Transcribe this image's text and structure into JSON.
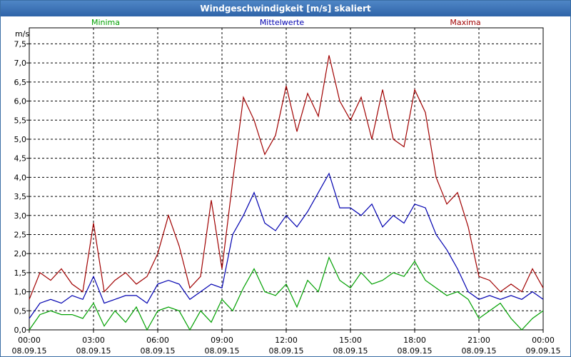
{
  "window": {
    "title": "Windgeschwindigkeit [m/s] skaliert"
  },
  "chart_data": {
    "type": "line",
    "title": "Windgeschwindigkeit [m/s] skaliert",
    "ylabel": "m/s",
    "xlabel": "",
    "ylim": [
      0,
      7.5
    ],
    "xlim_hours": [
      0,
      24
    ],
    "grid": true,
    "y_ticks": [
      "0,0",
      "0,5",
      "1,0",
      "1,5",
      "2,0",
      "2,5",
      "3,0",
      "3,5",
      "4,0",
      "4,5",
      "5,0",
      "5,5",
      "6,0",
      "6,5",
      "7,0",
      "7,5"
    ],
    "x_ticks": [
      {
        "time": "00:00",
        "date": "08.09.15"
      },
      {
        "time": "03:00",
        "date": "08.09.15"
      },
      {
        "time": "06:00",
        "date": "08.09.15"
      },
      {
        "time": "09:00",
        "date": "08.09.15"
      },
      {
        "time": "12:00",
        "date": "08.09.15"
      },
      {
        "time": "15:00",
        "date": "08.09.15"
      },
      {
        "time": "18:00",
        "date": "08.09.15"
      },
      {
        "time": "21:00",
        "date": "08.09.15"
      },
      {
        "time": "00:00",
        "date": "09.09.15"
      }
    ],
    "series": [
      {
        "name": "Minima",
        "color": "#00a000",
        "x": [
          0,
          0.5,
          1,
          1.5,
          2,
          2.5,
          3,
          3.5,
          4,
          4.5,
          5,
          5.5,
          6,
          6.5,
          7,
          7.5,
          8,
          8.5,
          9,
          9.5,
          10,
          10.5,
          11,
          11.5,
          12,
          12.5,
          13,
          13.5,
          14,
          14.5,
          15,
          15.5,
          16,
          16.5,
          17,
          17.5,
          18,
          18.5,
          19,
          19.5,
          20,
          20.5,
          21,
          21.5,
          22,
          22.5,
          23,
          23.5,
          24
        ],
        "values": [
          0.0,
          0.4,
          0.5,
          0.4,
          0.4,
          0.3,
          0.7,
          0.1,
          0.5,
          0.2,
          0.6,
          0.0,
          0.5,
          0.6,
          0.5,
          0.0,
          0.5,
          0.2,
          0.8,
          0.5,
          1.1,
          1.6,
          1.0,
          0.9,
          1.2,
          0.6,
          1.3,
          1.0,
          1.9,
          1.3,
          1.1,
          1.5,
          1.2,
          1.3,
          1.5,
          1.4,
          1.8,
          1.3,
          1.1,
          0.9,
          1.0,
          0.8,
          0.3,
          0.5,
          0.7,
          0.3,
          0.0,
          0.3,
          0.5
        ]
      },
      {
        "name": "Mittelwerte",
        "color": "#0000b0",
        "x": [
          0,
          0.5,
          1,
          1.5,
          2,
          2.5,
          3,
          3.5,
          4,
          4.5,
          5,
          5.5,
          6,
          6.5,
          7,
          7.5,
          8,
          8.5,
          9,
          9.5,
          10,
          10.5,
          11,
          11.5,
          12,
          12.5,
          13,
          13.5,
          14,
          14.5,
          15,
          15.5,
          16,
          16.5,
          17,
          17.5,
          18,
          18.5,
          19,
          19.5,
          20,
          20.5,
          21,
          21.5,
          22,
          22.5,
          23,
          23.5,
          24
        ],
        "values": [
          0.3,
          0.7,
          0.8,
          0.7,
          0.9,
          0.8,
          1.4,
          0.7,
          0.8,
          0.9,
          0.9,
          0.7,
          1.2,
          1.3,
          1.2,
          0.8,
          1.0,
          1.2,
          1.1,
          2.5,
          3.0,
          3.6,
          2.8,
          2.6,
          3.0,
          2.7,
          3.1,
          3.6,
          4.1,
          3.2,
          3.2,
          3.0,
          3.3,
          2.7,
          3.0,
          2.8,
          3.3,
          3.2,
          2.5,
          2.1,
          1.6,
          1.0,
          0.8,
          0.9,
          0.8,
          0.9,
          0.8,
          1.0,
          0.8
        ]
      },
      {
        "name": "Maxima",
        "color": "#a00000",
        "x": [
          0,
          0.5,
          1,
          1.5,
          2,
          2.5,
          3,
          3.5,
          4,
          4.5,
          5,
          5.5,
          6,
          6.5,
          7,
          7.5,
          8,
          8.5,
          9,
          9.5,
          10,
          10.5,
          11,
          11.5,
          12,
          12.5,
          13,
          13.5,
          14,
          14.5,
          15,
          15.5,
          16,
          16.5,
          17,
          17.5,
          18,
          18.5,
          19,
          19.5,
          20,
          20.5,
          21,
          21.5,
          22,
          22.5,
          23,
          23.5,
          24
        ],
        "values": [
          0.8,
          1.5,
          1.3,
          1.6,
          1.2,
          1.0,
          2.8,
          1.0,
          1.3,
          1.5,
          1.2,
          1.4,
          2.0,
          3.0,
          2.2,
          1.1,
          1.4,
          3.4,
          1.6,
          3.9,
          6.1,
          5.5,
          4.6,
          5.1,
          6.4,
          5.2,
          6.2,
          5.6,
          7.2,
          6.0,
          5.5,
          6.1,
          5.0,
          6.3,
          5.0,
          4.8,
          6.3,
          5.7,
          4.0,
          3.3,
          3.6,
          2.7,
          1.4,
          1.3,
          1.0,
          1.2,
          1.0,
          1.6,
          1.1
        ]
      }
    ]
  }
}
